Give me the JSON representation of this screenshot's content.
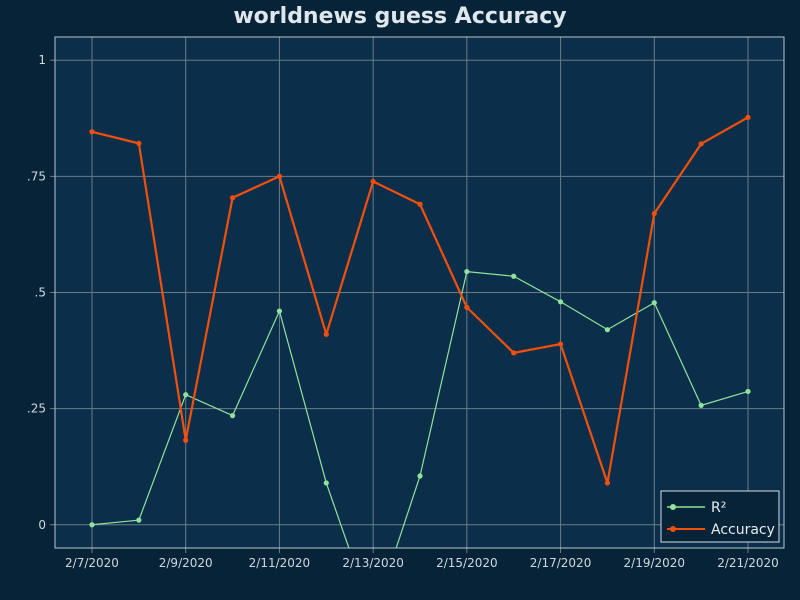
{
  "chart_data": {
    "type": "line",
    "title": "worldnews guess Accuracy",
    "xlabel": "",
    "ylabel": "",
    "x": [
      "2/7/2020",
      "2/8/2020",
      "2/9/2020",
      "2/10/2020",
      "2/11/2020",
      "2/12/2020",
      "2/13/2020",
      "2/14/2020",
      "2/15/2020",
      "2/16/2020",
      "2/17/2020",
      "2/18/2020",
      "2/19/2020",
      "2/20/2020",
      "2/21/2020"
    ],
    "x_tick_labels": [
      "2/7/2020",
      "2/9/2020",
      "2/11/2020",
      "2/13/2020",
      "2/15/2020",
      "2/17/2020",
      "2/19/2020",
      "2/21/2020"
    ],
    "ylim": [
      -0.05,
      1.05
    ],
    "y_ticks": [
      0,
      0.25,
      0.5,
      0.75,
      1
    ],
    "y_tick_labels": [
      "0",
      ".25",
      ".5",
      ".75",
      "1"
    ],
    "grid": true,
    "legend_position": "bottom-right",
    "series": [
      {
        "name": "R²",
        "color": "#8fe39a",
        "values": [
          0.0,
          0.01,
          0.28,
          0.235,
          0.46,
          0.09,
          -0.2,
          0.105,
          0.545,
          0.535,
          0.48,
          0.42,
          0.478,
          0.257,
          0.287
        ]
      },
      {
        "name": "Accuracy",
        "color": "#f2500a",
        "values": [
          0.846,
          0.821,
          0.182,
          0.704,
          0.75,
          0.41,
          0.739,
          0.69,
          0.468,
          0.37,
          0.389,
          0.09,
          0.67,
          0.82,
          0.877
        ]
      }
    ],
    "colors": {
      "background": "#072338",
      "plot_background": "#0b2f4b",
      "grid": "#6b7b86",
      "plot_border": "#b9c6cf"
    }
  }
}
